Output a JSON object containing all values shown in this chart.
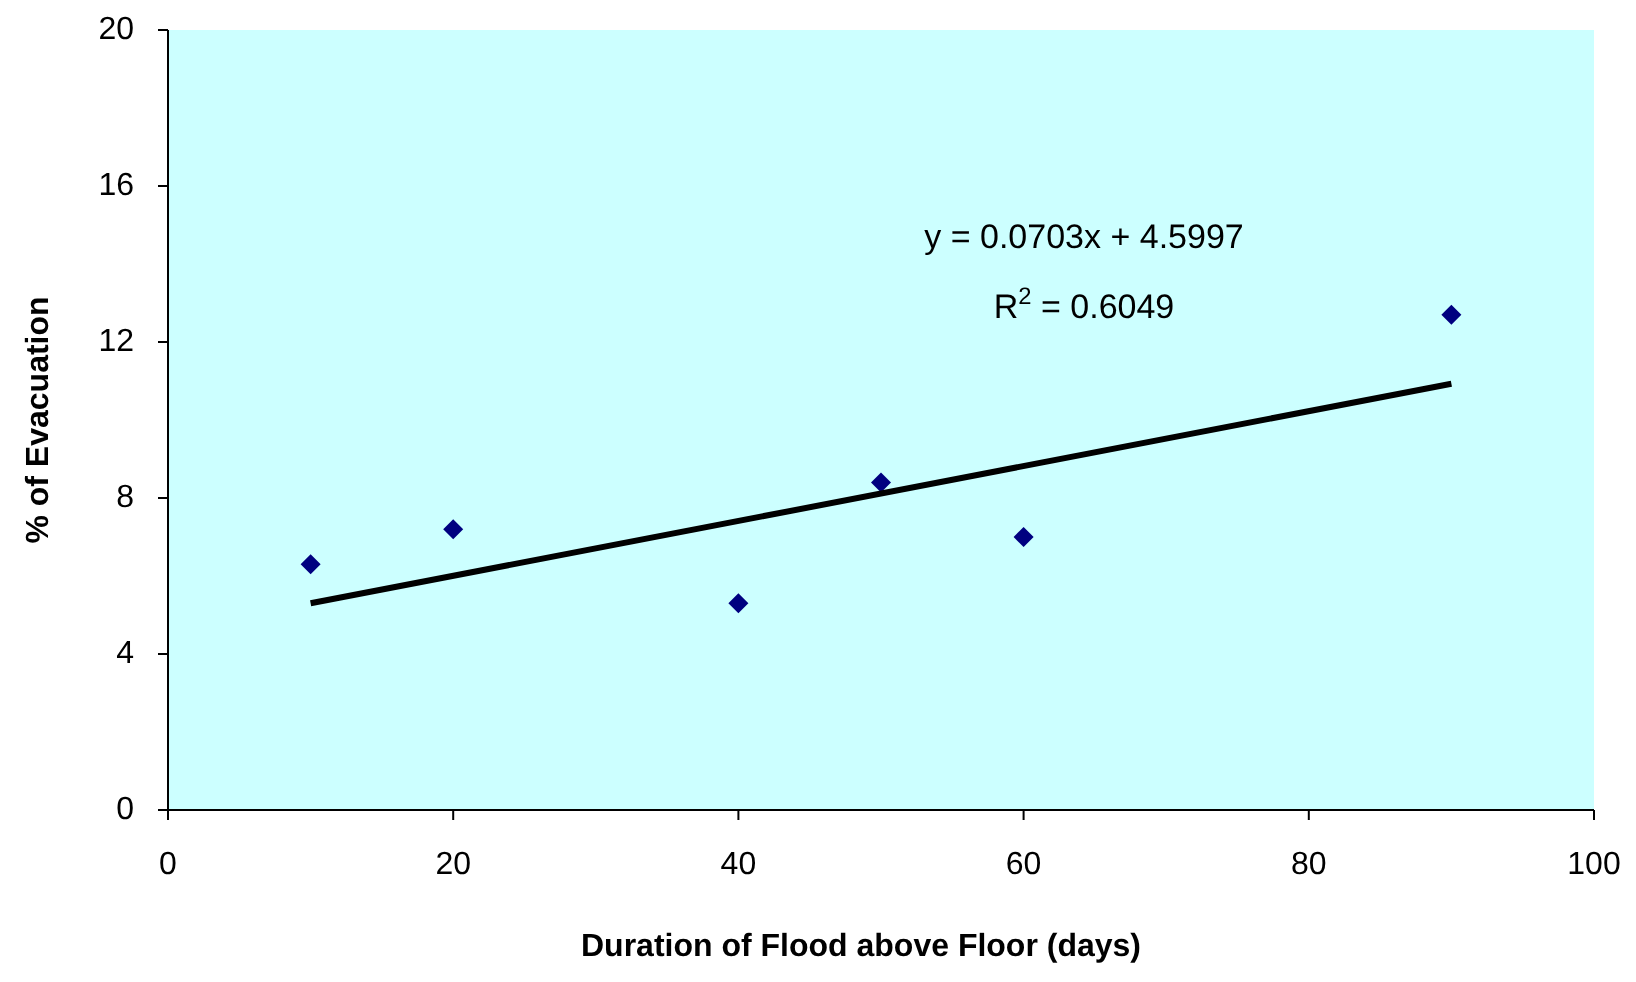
{
  "chart_data": {
    "type": "scatter",
    "xlabel": "Duration of Flood above Floor (days)",
    "ylabel": "% of Evacuation",
    "x": [
      10,
      20,
      40,
      50,
      60,
      90
    ],
    "series": [
      {
        "color": "#000080",
        "values": [
          6.3,
          7.2,
          5.3,
          8.4,
          7.0,
          12.7
        ],
        "marker": "diamond"
      },
      {
        "type": "line",
        "color": "#000000",
        "x": [
          10,
          90
        ],
        "values": [
          5.3,
          10.93
        ],
        "marker": "none"
      }
    ],
    "xlim": [
      0,
      100
    ],
    "xticks": [
      0,
      20,
      40,
      60,
      80,
      100
    ],
    "ylim": [
      0,
      20
    ],
    "yticks": [
      0,
      4,
      8,
      12,
      16,
      20
    ],
    "grid": false,
    "annotations": [
      "y = 0.0703x + 4.5997",
      "R$^{2}$ = 0.6049"
    ]
  }
}
